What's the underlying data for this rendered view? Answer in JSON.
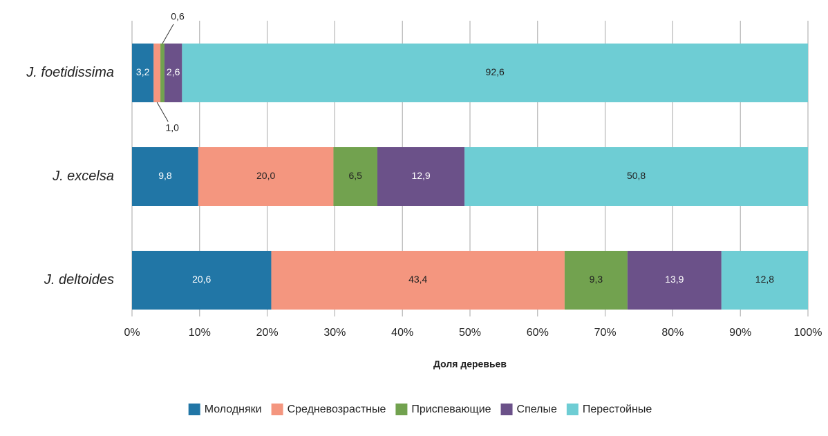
{
  "chart_data": {
    "type": "stacked-bar-horizontal",
    "categories": [
      "J. foetidissima",
      "J. excelsa",
      "J. deltoides"
    ],
    "series": [
      {
        "name": "Молодняки",
        "color": "#2176a6",
        "values": [
          3.2,
          9.8,
          20.6
        ],
        "value_labels": [
          "3,2",
          "9,8",
          "20,6"
        ]
      },
      {
        "name": "Средневозрастные",
        "color": "#f4967f",
        "values": [
          1.0,
          20.0,
          43.4
        ],
        "value_labels": [
          "1,0",
          "20,0",
          "43,4"
        ]
      },
      {
        "name": "Приспевающие",
        "color": "#72a24f",
        "values": [
          0.6,
          6.5,
          9.3
        ],
        "value_labels": [
          "0,6",
          "6,5",
          "9,3"
        ]
      },
      {
        "name": "Спелые",
        "color": "#6b5189",
        "values": [
          2.6,
          12.9,
          13.9
        ],
        "value_labels": [
          "2,6",
          "12,9",
          "13,9"
        ]
      },
      {
        "name": "Перестойные",
        "color": "#6ecdd4",
        "values": [
          92.6,
          50.8,
          12.8
        ],
        "value_labels": [
          "92,6",
          "50,8",
          "12,8"
        ]
      }
    ],
    "xlabel": "Доля деревьев",
    "xlim": [
      0,
      100
    ],
    "xticks": [
      {
        "value": 0,
        "label": "0%"
      },
      {
        "value": 10,
        "label": "10%"
      },
      {
        "value": 20,
        "label": "20%"
      },
      {
        "value": 30,
        "label": "30%"
      },
      {
        "value": 40,
        "label": "40%"
      },
      {
        "value": 50,
        "label": "50%"
      },
      {
        "value": 60,
        "label": "60%"
      },
      {
        "value": 70,
        "label": "70%"
      },
      {
        "value": 80,
        "label": "80%"
      },
      {
        "value": 90,
        "label": "90%"
      },
      {
        "value": 100,
        "label": "100%"
      }
    ],
    "grid": true,
    "legend": "bottom"
  }
}
